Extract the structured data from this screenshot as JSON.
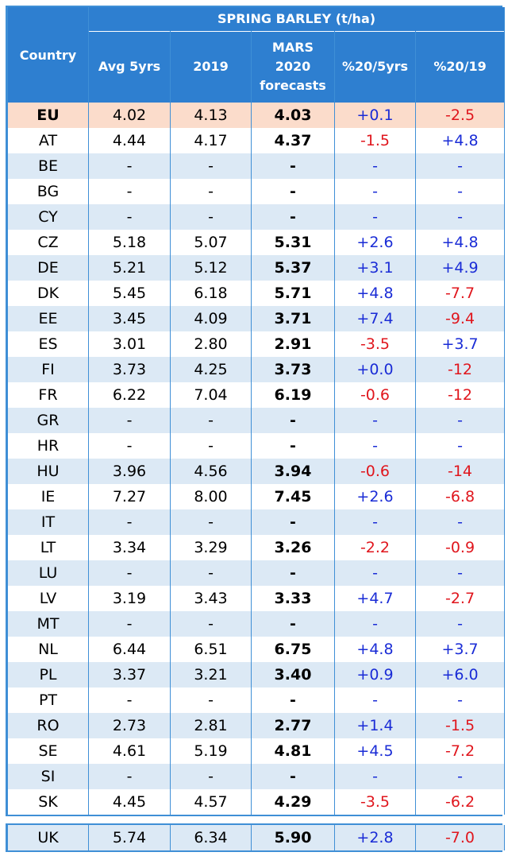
{
  "chart_data": {
    "type": "table",
    "title": "SPRING BARLEY (t/ha)",
    "columns": [
      "Country",
      "Avg 5yrs",
      "2019",
      "MARS 2020 forecasts",
      "%20/5yrs",
      "%20/19"
    ],
    "header": {
      "country": "Country",
      "avg": "Avg 5yrs",
      "y2019": "2019",
      "mars_l1": "MARS",
      "mars_l2": "2020",
      "mars_l3": "forecasts",
      "p5": "%20/5yrs",
      "p19": "%20/19"
    },
    "rows": [
      {
        "c": "EU",
        "avg": "4.02",
        "y19": "4.13",
        "mars": "4.03",
        "p5": "+0.1",
        "p19": "-2.5"
      },
      {
        "c": "AT",
        "avg": "4.44",
        "y19": "4.17",
        "mars": "4.37",
        "p5": "-1.5",
        "p19": "+4.8"
      },
      {
        "c": "BE",
        "avg": "-",
        "y19": "-",
        "mars": "-",
        "p5": "-",
        "p19": "-"
      },
      {
        "c": "BG",
        "avg": "-",
        "y19": "-",
        "mars": "-",
        "p5": "-",
        "p19": "-"
      },
      {
        "c": "CY",
        "avg": "-",
        "y19": "-",
        "mars": "-",
        "p5": "-",
        "p19": "-"
      },
      {
        "c": "CZ",
        "avg": "5.18",
        "y19": "5.07",
        "mars": "5.31",
        "p5": "+2.6",
        "p19": "+4.8"
      },
      {
        "c": "DE",
        "avg": "5.21",
        "y19": "5.12",
        "mars": "5.37",
        "p5": "+3.1",
        "p19": "+4.9"
      },
      {
        "c": "DK",
        "avg": "5.45",
        "y19": "6.18",
        "mars": "5.71",
        "p5": "+4.8",
        "p19": "-7.7"
      },
      {
        "c": "EE",
        "avg": "3.45",
        "y19": "4.09",
        "mars": "3.71",
        "p5": "+7.4",
        "p19": "-9.4"
      },
      {
        "c": "ES",
        "avg": "3.01",
        "y19": "2.80",
        "mars": "2.91",
        "p5": "-3.5",
        "p19": "+3.7"
      },
      {
        "c": "FI",
        "avg": "3.73",
        "y19": "4.25",
        "mars": "3.73",
        "p5": "+0.0",
        "p19": "-12"
      },
      {
        "c": "FR",
        "avg": "6.22",
        "y19": "7.04",
        "mars": "6.19",
        "p5": "-0.6",
        "p19": "-12"
      },
      {
        "c": "GR",
        "avg": "-",
        "y19": "-",
        "mars": "-",
        "p5": "-",
        "p19": "-"
      },
      {
        "c": "HR",
        "avg": "-",
        "y19": "-",
        "mars": "-",
        "p5": "-",
        "p19": "-"
      },
      {
        "c": "HU",
        "avg": "3.96",
        "y19": "4.56",
        "mars": "3.94",
        "p5": "-0.6",
        "p19": "-14"
      },
      {
        "c": "IE",
        "avg": "7.27",
        "y19": "8.00",
        "mars": "7.45",
        "p5": "+2.6",
        "p19": "-6.8"
      },
      {
        "c": "IT",
        "avg": "-",
        "y19": "-",
        "mars": "-",
        "p5": "-",
        "p19": "-"
      },
      {
        "c": "LT",
        "avg": "3.34",
        "y19": "3.29",
        "mars": "3.26",
        "p5": "-2.2",
        "p19": "-0.9"
      },
      {
        "c": "LU",
        "avg": "-",
        "y19": "-",
        "mars": "-",
        "p5": "-",
        "p19": "-"
      },
      {
        "c": "LV",
        "avg": "3.19",
        "y19": "3.43",
        "mars": "3.33",
        "p5": "+4.7",
        "p19": "-2.7"
      },
      {
        "c": "MT",
        "avg": "-",
        "y19": "-",
        "mars": "-",
        "p5": "-",
        "p19": "-"
      },
      {
        "c": "NL",
        "avg": "6.44",
        "y19": "6.51",
        "mars": "6.75",
        "p5": "+4.8",
        "p19": "+3.7"
      },
      {
        "c": "PL",
        "avg": "3.37",
        "y19": "3.21",
        "mars": "3.40",
        "p5": "+0.9",
        "p19": "+6.0"
      },
      {
        "c": "PT",
        "avg": "-",
        "y19": "-",
        "mars": "-",
        "p5": "-",
        "p19": "-"
      },
      {
        "c": "RO",
        "avg": "2.73",
        "y19": "2.81",
        "mars": "2.77",
        "p5": "+1.4",
        "p19": "-1.5"
      },
      {
        "c": "SE",
        "avg": "4.61",
        "y19": "5.19",
        "mars": "4.81",
        "p5": "+4.5",
        "p19": "-7.2"
      },
      {
        "c": "SI",
        "avg": "-",
        "y19": "-",
        "mars": "-",
        "p5": "-",
        "p19": "-"
      },
      {
        "c": "SK",
        "avg": "4.45",
        "y19": "4.57",
        "mars": "4.29",
        "p5": "-3.5",
        "p19": "-6.2"
      }
    ],
    "uk_row": {
      "c": "UK",
      "avg": "5.74",
      "y19": "6.34",
      "mars": "5.90",
      "p5": "+2.8",
      "p19": "-7.0"
    },
    "colors": {
      "header_bg": "#2e7fd0",
      "eu_row_bg": "#fbdccb",
      "alt_row_bg": "#dce9f5",
      "positive": "#1a2cd6",
      "negative": "#e0161d"
    }
  }
}
